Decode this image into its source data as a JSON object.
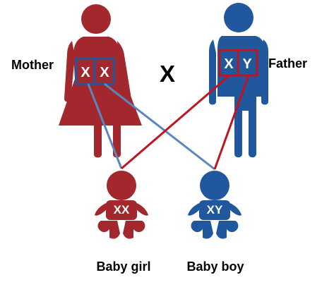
{
  "diagram": {
    "parents": {
      "mother": {
        "label": "Mother",
        "chromosomes": [
          "X",
          "X"
        ],
        "color": "#a3282d"
      },
      "father": {
        "label": "Father",
        "chromosomes": [
          "X",
          "Y"
        ],
        "color": "#21579d"
      }
    },
    "cross_symbol": "X",
    "offspring": {
      "girl": {
        "label": "Baby girl",
        "chromosomes": "XX",
        "color": "#a3282d"
      },
      "boy": {
        "label": "Baby boy",
        "chromosomes": "XY",
        "color": "#21579d"
      }
    },
    "connector_colors": {
      "from_mother": "#5b86bd",
      "from_father": "#c0141e"
    }
  }
}
